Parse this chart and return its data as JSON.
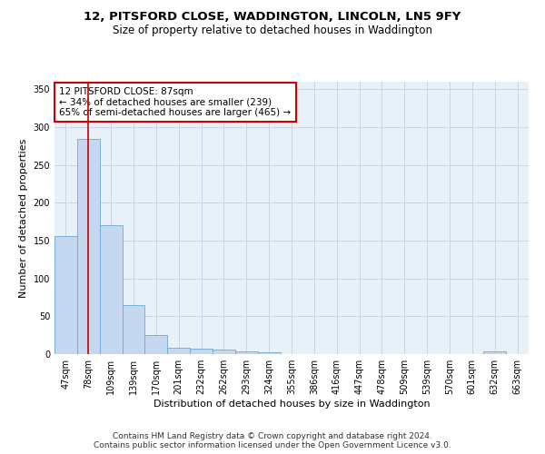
{
  "title": "12, PITSFORD CLOSE, WADDINGTON, LINCOLN, LN5 9FY",
  "subtitle": "Size of property relative to detached houses in Waddington",
  "xlabel": "Distribution of detached houses by size in Waddington",
  "ylabel": "Number of detached properties",
  "bar_categories": [
    "47sqm",
    "78sqm",
    "109sqm",
    "139sqm",
    "170sqm",
    "201sqm",
    "232sqm",
    "262sqm",
    "293sqm",
    "324sqm",
    "355sqm",
    "386sqm",
    "416sqm",
    "447sqm",
    "478sqm",
    "509sqm",
    "539sqm",
    "570sqm",
    "601sqm",
    "632sqm",
    "663sqm"
  ],
  "bar_values": [
    156,
    285,
    170,
    65,
    25,
    9,
    7,
    6,
    4,
    3,
    0,
    0,
    0,
    0,
    0,
    0,
    0,
    0,
    0,
    4,
    0
  ],
  "bar_color": "#c5d8f0",
  "bar_edge_color": "#6aaad4",
  "vline_x": 1.0,
  "vline_color": "#cc0000",
  "annotation_text": "12 PITSFORD CLOSE: 87sqm\n← 34% of detached houses are smaller (239)\n65% of semi-detached houses are larger (465) →",
  "annotation_box_color": "#ffffff",
  "annotation_box_edge": "#cc0000",
  "ylim": [
    0,
    360
  ],
  "yticks": [
    0,
    50,
    100,
    150,
    200,
    250,
    300,
    350
  ],
  "grid_color": "#c8d4e8",
  "background_color": "#e8f0f8",
  "footer_line1": "Contains HM Land Registry data © Crown copyright and database right 2024.",
  "footer_line2": "Contains public sector information licensed under the Open Government Licence v3.0.",
  "title_fontsize": 9.5,
  "subtitle_fontsize": 8.5,
  "xlabel_fontsize": 8,
  "ylabel_fontsize": 8,
  "tick_fontsize": 7,
  "annotation_fontsize": 7.5,
  "footer_fontsize": 6.5
}
